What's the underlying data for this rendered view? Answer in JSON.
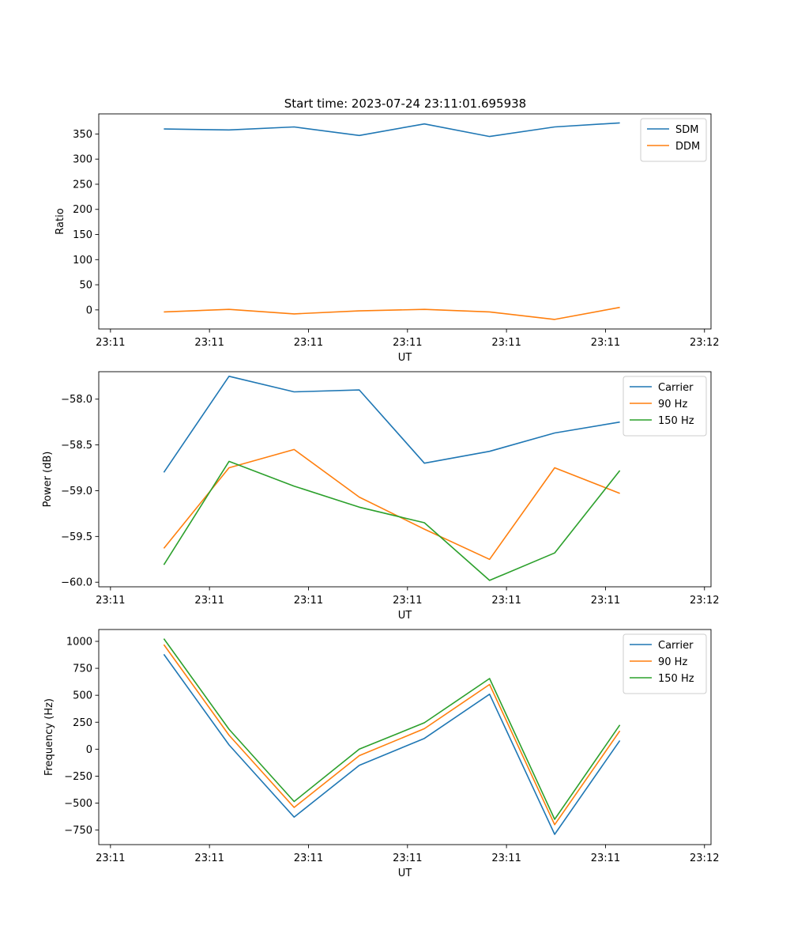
{
  "figure": {
    "title": "Start time: 2023-07-24 23:11:01.695938"
  },
  "chart_data": [
    {
      "type": "line",
      "title": "Start time: 2023-07-24 23:11:01.695938",
      "xlabel": "UT",
      "ylabel": "Ratio",
      "x": [
        1,
        2,
        3,
        4,
        5,
        6,
        7,
        8
      ],
      "xlim": [
        0.0,
        9.4
      ],
      "xticks": [
        0.18,
        1.7,
        3.22,
        4.74,
        6.26,
        7.78,
        9.3
      ],
      "xtick_labels": [
        "23:11",
        "23:11",
        "23:11",
        "23:11",
        "23:11",
        "23:11",
        "23:12"
      ],
      "ylim": [
        -38,
        390
      ],
      "yticks": [
        0,
        50,
        100,
        150,
        200,
        250,
        300,
        350
      ],
      "ytick_labels": [
        "0",
        "50",
        "100",
        "150",
        "200",
        "250",
        "300",
        "350"
      ],
      "legend_position": "top-right",
      "series": [
        {
          "name": "SDM",
          "color": "#1f77b4",
          "values": [
            360,
            358,
            364,
            347,
            370,
            345,
            364,
            372
          ]
        },
        {
          "name": "DDM",
          "color": "#ff7f0e",
          "values": [
            -4,
            1,
            -8,
            -2,
            1,
            -4,
            -19,
            5
          ]
        }
      ]
    },
    {
      "type": "line",
      "title": "",
      "xlabel": "UT",
      "ylabel": "Power (dB)",
      "x": [
        1,
        2,
        3,
        4,
        5,
        6,
        7,
        8
      ],
      "xlim": [
        0.0,
        9.4
      ],
      "xticks": [
        0.18,
        1.7,
        3.22,
        4.74,
        6.26,
        7.78,
        9.3
      ],
      "xtick_labels": [
        "23:11",
        "23:11",
        "23:11",
        "23:11",
        "23:11",
        "23:11",
        "23:12"
      ],
      "ylim": [
        -60.05,
        -57.7
      ],
      "yticks": [
        -60.0,
        -59.5,
        -59.0,
        -58.5,
        -58.0
      ],
      "ytick_labels": [
        "−60.0",
        "−59.5",
        "−59.0",
        "−58.5",
        "−58.0"
      ],
      "legend_position": "top-right",
      "series": [
        {
          "name": "Carrier",
          "color": "#1f77b4",
          "values": [
            -58.8,
            -57.75,
            -57.92,
            -57.9,
            -58.7,
            -58.57,
            -58.37,
            -58.25
          ]
        },
        {
          "name": "90 Hz",
          "color": "#ff7f0e",
          "values": [
            -59.63,
            -58.75,
            -58.55,
            -59.07,
            -59.42,
            -59.75,
            -58.75,
            -59.03
          ]
        },
        {
          "name": "150 Hz",
          "color": "#2ca02c",
          "values": [
            -59.81,
            -58.68,
            -58.95,
            -59.18,
            -59.35,
            -59.98,
            -59.68,
            -58.78
          ]
        }
      ]
    },
    {
      "type": "line",
      "title": "",
      "xlabel": "UT",
      "ylabel": "Frequency (Hz)",
      "x": [
        1,
        2,
        3,
        4,
        5,
        6,
        7,
        8
      ],
      "xlim": [
        0.0,
        9.4
      ],
      "xticks": [
        0.18,
        1.7,
        3.22,
        4.74,
        6.26,
        7.78,
        9.3
      ],
      "xtick_labels": [
        "23:11",
        "23:11",
        "23:11",
        "23:11",
        "23:11",
        "23:11",
        "23:12"
      ],
      "ylim": [
        -885,
        1110
      ],
      "yticks": [
        -750,
        -500,
        -250,
        0,
        250,
        500,
        750,
        1000
      ],
      "ytick_labels": [
        "−750",
        "−500",
        "−250",
        "0",
        "250",
        "500",
        "750",
        "1000"
      ],
      "legend_position": "top-right",
      "series": [
        {
          "name": "Carrier",
          "color": "#1f77b4",
          "values": [
            880,
            40,
            -630,
            -150,
            100,
            510,
            -790,
            80
          ]
        },
        {
          "name": "90 Hz",
          "color": "#ff7f0e",
          "values": [
            970,
            130,
            -540,
            -60,
            190,
            600,
            -700,
            170
          ]
        },
        {
          "name": "150 Hz",
          "color": "#2ca02c",
          "values": [
            1025,
            185,
            -485,
            0,
            245,
            655,
            -650,
            225
          ]
        }
      ]
    }
  ]
}
